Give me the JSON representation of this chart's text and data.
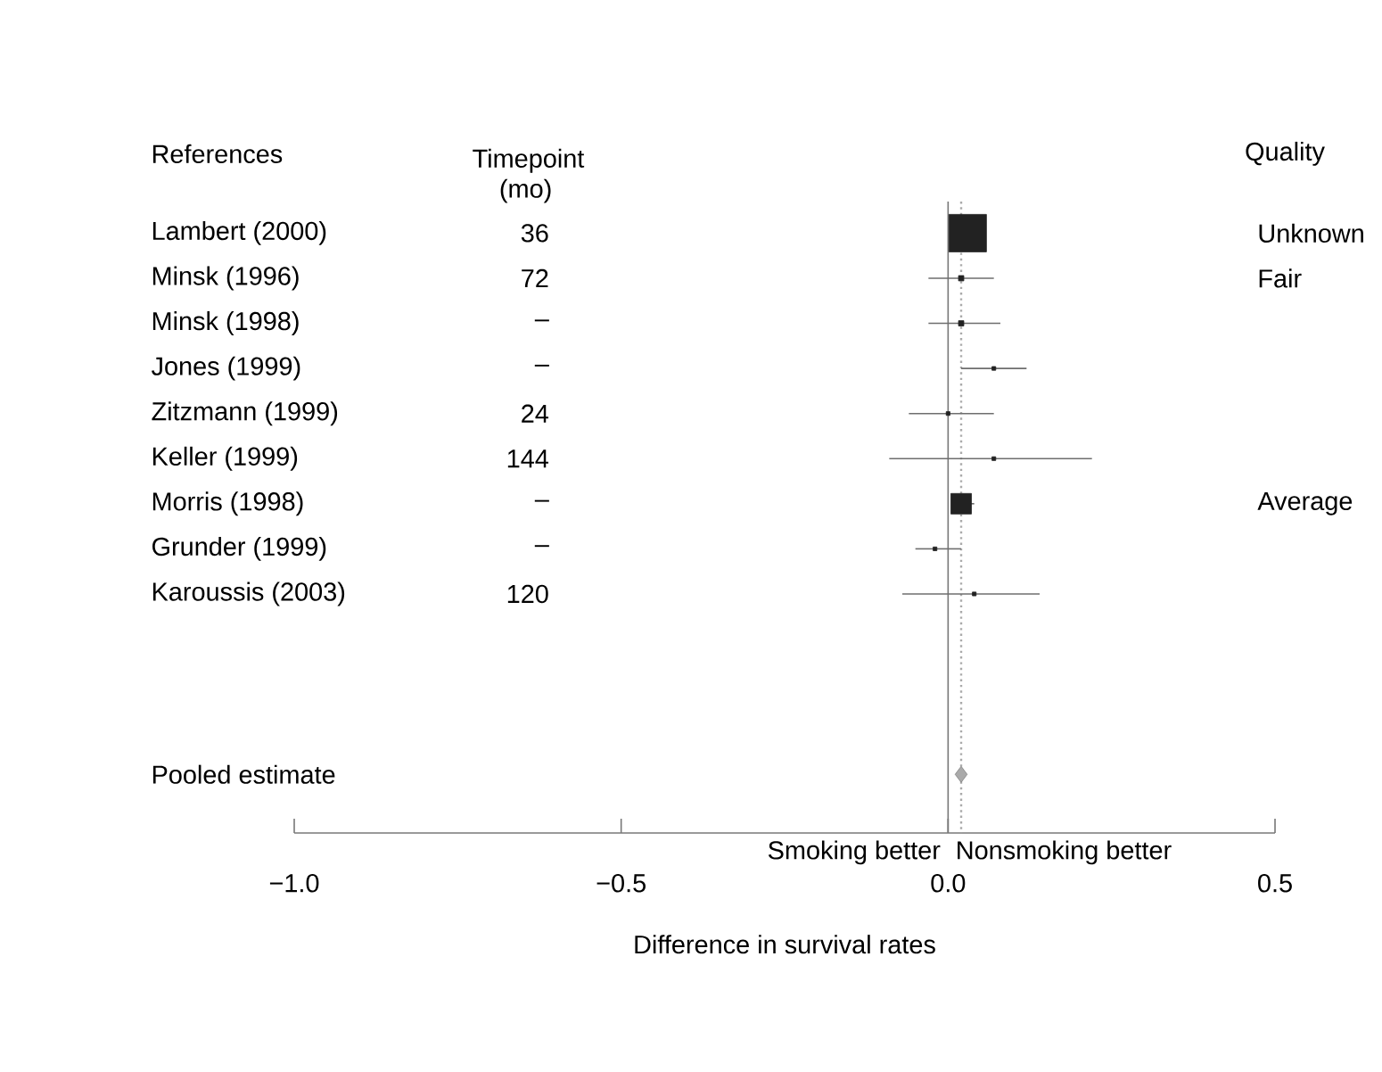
{
  "chart_data": {
    "type": "bubble",
    "orientation": "horizontal",
    "xlabel": "Difference in survival rates",
    "categories": [
      "Lambert (2000)",
      "Minsk (1996)",
      "Minsk (1998)",
      "Jones (1999)",
      "Zitzmann (1999)",
      "Keller (1999)",
      "Morris (1998)",
      "Grunder (1999)",
      "Karoussis (2003)",
      null,
      null,
      null,
      "Pooled estimate"
    ],
    "series": [
      {
        "color": "#222222",
        "marker": "square",
        "values": [
          0.03,
          0.02,
          0.02,
          0.07,
          0.0,
          0.07,
          0.02,
          -0.02,
          0.04,
          null,
          null,
          null,
          null
        ],
        "errors": [
          null,
          [
            -0.03,
            0.07
          ],
          [
            -0.03,
            0.08
          ],
          [
            0.02,
            0.12
          ],
          [
            -0.06,
            0.07
          ],
          [
            -0.09,
            0.22
          ],
          [
            0.01,
            0.04
          ],
          [
            -0.05,
            0.02
          ],
          [
            -0.07,
            0.14
          ],
          null,
          null,
          null,
          null
        ],
        "sizes": [
          1,
          0.02,
          0.02,
          0.01,
          0.01,
          0.01,
          0.3,
          0.01,
          0.01,
          null,
          null,
          null,
          null
        ]
      },
      {
        "type": "scatter",
        "marker": "diamond",
        "color": "#aaaaaa",
        "values": [
          null,
          null,
          null,
          null,
          null,
          null,
          null,
          null,
          null,
          null,
          null,
          null,
          0.02
        ]
      }
    ],
    "xlim": [
      -1.0,
      0.5
    ],
    "xticks": [
      {
        "value": -1.0,
        "label": "−1.0"
      },
      {
        "value": -0.5,
        "label": "−0.5"
      },
      {
        "value": 0.0,
        "label": "0.0"
      },
      {
        "value": 0.5,
        "label": "0.5"
      }
    ],
    "ref_lines": [
      {
        "axis": "x",
        "value": 0,
        "color": "#777777",
        "line_style": "solid"
      },
      {
        "axis": "x",
        "value": 0.02,
        "color": "#aaaaaa",
        "line_style": "dotted"
      }
    ],
    "annotations": [
      "References",
      "Timepoint (mo)",
      "Quality",
      "36",
      "72",
      "–",
      "–",
      "24",
      "144",
      "–",
      "–",
      "120",
      "Unknown",
      "Fair",
      "Average",
      "Smoking better",
      "Nonsmoking better"
    ],
    "grid": false
  }
}
